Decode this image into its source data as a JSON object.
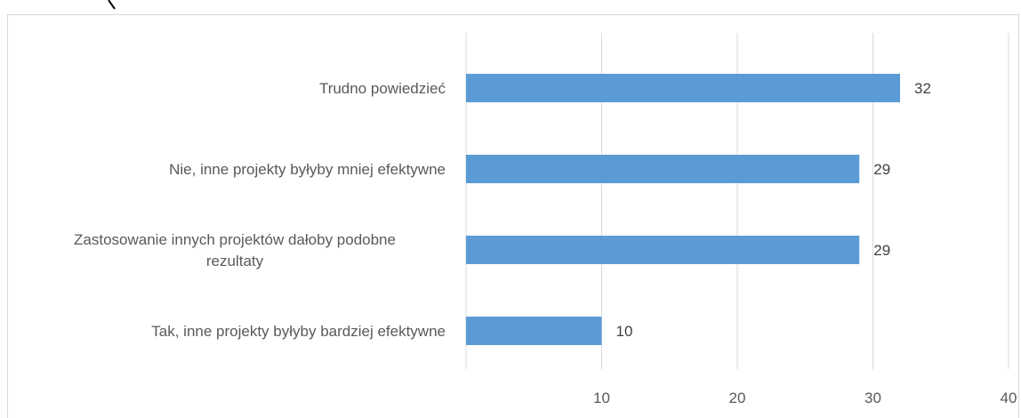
{
  "colors": {
    "bar": "#5b9bd5",
    "grid": "#d9d9d9",
    "text": "#595959",
    "frame": "#d9d9d9"
  },
  "chart_data": {
    "type": "bar",
    "orientation": "horizontal",
    "title": "",
    "xlabel": "",
    "ylabel": "",
    "categories": [
      "Trudno powiedzieć",
      "Nie, inne projekty byłyby mniej efektywne",
      "Zastosowanie innych projektów dałoby podobne rezultaty",
      "Tak, inne projekty byłyby bardziej efektywne"
    ],
    "category_lines": [
      [
        "Trudno powiedzieć"
      ],
      [
        "Nie, inne projekty byłyby mniej efektywne"
      ],
      [
        "Zastosowanie innych projektów dałoby podobne",
        "rezultaty"
      ],
      [
        "Tak, inne projekty byłyby bardziej efektywne"
      ]
    ],
    "values": [
      32,
      29,
      29,
      10
    ],
    "data_labels": [
      "32",
      "29",
      "29",
      "10"
    ],
    "xlim": [
      0,
      40
    ],
    "xticks": [
      10,
      20,
      30,
      40
    ],
    "xtick_labels": [
      "10",
      "20",
      "30",
      "40"
    ],
    "grid": true,
    "legend": "none"
  }
}
